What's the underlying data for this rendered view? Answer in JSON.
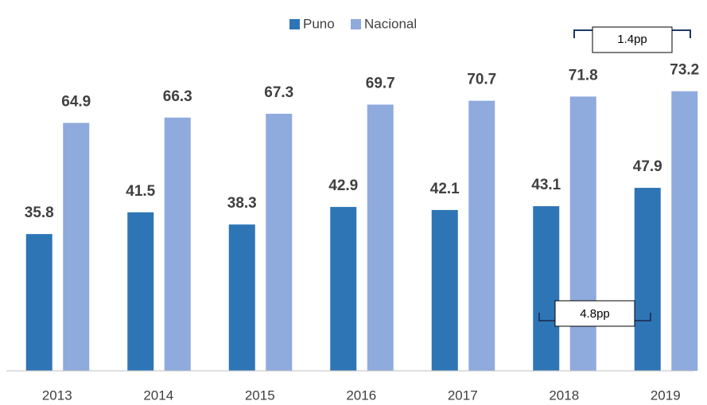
{
  "chart_data": {
    "type": "bar",
    "categories": [
      "2013",
      "2014",
      "2015",
      "2016",
      "2017",
      "2018",
      "2019"
    ],
    "series": [
      {
        "name": "Puno",
        "color": "#2e75b6",
        "values": [
          35.8,
          41.5,
          38.3,
          42.9,
          42.1,
          43.1,
          47.9
        ]
      },
      {
        "name": "Nacional",
        "color": "#8faadc",
        "values": [
          64.9,
          66.3,
          67.3,
          69.7,
          70.7,
          71.8,
          73.2
        ]
      }
    ],
    "ylim": [
      0,
      80
    ],
    "annotations": [
      "1.4pp",
      "4.8pp"
    ]
  }
}
